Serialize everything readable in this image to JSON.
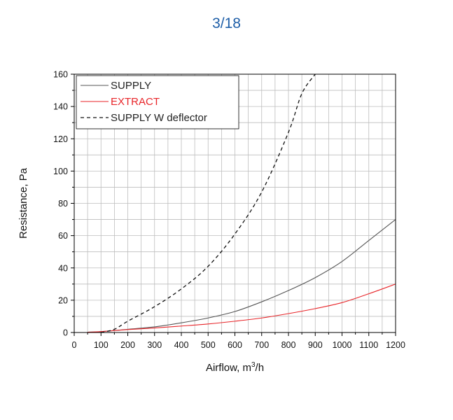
{
  "page": {
    "number_label": "3/18",
    "accent_color": "#1f5fa8"
  },
  "chart_data": {
    "type": "line",
    "xlabel": "Airflow, m³/h",
    "xlabel_main": "Airflow, m",
    "xlabel_sup": "3",
    "xlabel_tail": "/h",
    "ylabel": "Resistance, Pa",
    "xlim": [
      0,
      1200
    ],
    "ylim": [
      0,
      160
    ],
    "x_ticks": [
      0,
      100,
      200,
      300,
      400,
      500,
      600,
      700,
      800,
      900,
      1000,
      1100,
      1200
    ],
    "x_tick_labels": [
      "0",
      "100",
      "200",
      "300",
      "400",
      "500",
      "600",
      "700",
      "800",
      "900",
      "1000",
      "1100",
      "1200"
    ],
    "y_ticks": [
      0,
      20,
      40,
      60,
      80,
      100,
      120,
      140,
      160
    ],
    "y_tick_labels": [
      "0",
      "20",
      "40",
      "60",
      "80",
      "100",
      "120",
      "140",
      "160"
    ],
    "grid": true,
    "legend_position": "top-left",
    "series": [
      {
        "name": "SUPPLY",
        "color": "#555555",
        "style": "solid",
        "x": [
          50,
          100,
          200,
          300,
          400,
          500,
          600,
          700,
          800,
          900,
          1000,
          1100,
          1200
        ],
        "y": [
          0.2,
          0.5,
          2,
          3.5,
          6,
          9,
          13,
          19,
          26,
          34,
          44,
          57,
          70
        ]
      },
      {
        "name": "EXTRACT",
        "color": "#e8262a",
        "style": "solid",
        "x": [
          50,
          100,
          200,
          300,
          400,
          500,
          600,
          700,
          800,
          900,
          1000,
          1100,
          1200
        ],
        "y": [
          0.2,
          0.6,
          1.8,
          2.8,
          4,
          5.3,
          7,
          9,
          11.7,
          14.8,
          18.5,
          24,
          30
        ]
      },
      {
        "name": "SUPPLY W deflector",
        "color": "#111111",
        "style": "dashed",
        "x": [
          100,
          150,
          200,
          300,
          400,
          500,
          600,
          700,
          800,
          850,
          900
        ],
        "y": [
          0,
          2,
          7,
          16,
          27,
          41,
          61,
          87,
          124,
          148,
          160
        ]
      }
    ]
  }
}
